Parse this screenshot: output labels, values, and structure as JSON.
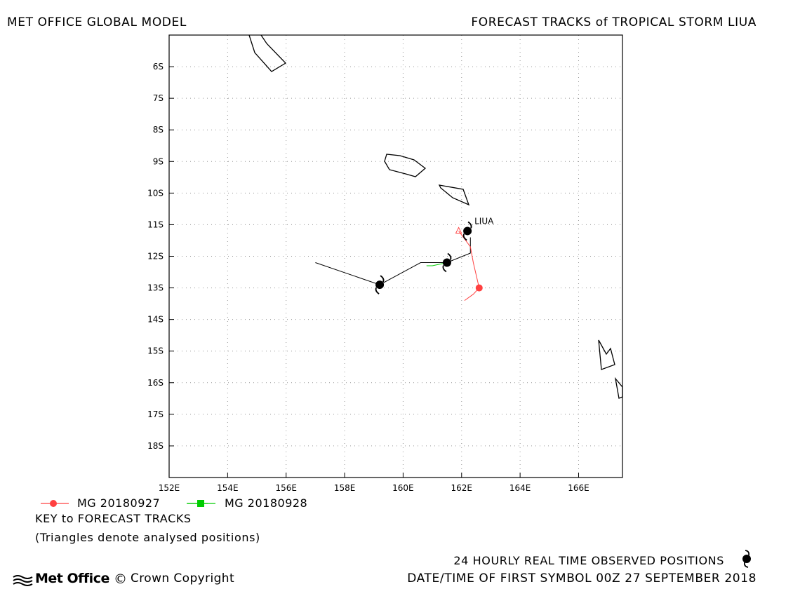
{
  "header": {
    "left_title": "MET OFFICE GLOBAL MODEL",
    "right_title": "FORECAST TRACKS of TROPICAL STORM LIUA"
  },
  "map": {
    "lon_range": [
      152,
      167.5
    ],
    "lat_range": [
      -5,
      -19
    ],
    "lat_labels": [
      "6S",
      "7S",
      "8S",
      "9S",
      "10S",
      "11S",
      "12S",
      "13S",
      "14S",
      "15S",
      "16S",
      "17S",
      "18S"
    ],
    "lon_labels": [
      "152E",
      "154E",
      "156E",
      "158E",
      "160E",
      "162E",
      "164E",
      "166E"
    ],
    "grid": true,
    "storm_name": "LIUA",
    "colors": {
      "observed": "#000000",
      "run1": "#ff4040",
      "run2": "#00cc00",
      "land": "#000000"
    }
  },
  "chart_data": {
    "type": "map-tracks",
    "observed_track": [
      {
        "lon": 162.2,
        "lat": -11.2
      },
      {
        "lon": 161.5,
        "lat": -12.2
      },
      {
        "lon": 159.2,
        "lat": -12.9
      }
    ],
    "observed_line": [
      {
        "lon": 162.3,
        "lat": -11.4
      },
      {
        "lon": 162.3,
        "lat": -11.9
      },
      {
        "lon": 161.5,
        "lat": -12.2
      },
      {
        "lon": 160.6,
        "lat": -12.2
      },
      {
        "lon": 159.2,
        "lat": -12.9
      },
      {
        "lon": 157.0,
        "lat": -12.2
      }
    ],
    "series": [
      {
        "name": "MG 20180927",
        "color": "#ff4040",
        "points": [
          {
            "lon": 161.9,
            "lat": -11.2
          },
          {
            "lon": 162.3,
            "lat": -11.7
          },
          {
            "lon": 162.4,
            "lat": -12.2
          },
          {
            "lon": 162.5,
            "lat": -12.6
          },
          {
            "lon": 162.6,
            "lat": -13.0
          },
          {
            "lon": 162.4,
            "lat": -13.2
          },
          {
            "lon": 162.1,
            "lat": -13.4
          }
        ],
        "dot": {
          "lon": 162.6,
          "lat": -13.0
        },
        "analysed": {
          "lon": 161.9,
          "lat": -11.2
        }
      },
      {
        "name": "MG 20180928",
        "color": "#00cc00",
        "points": [
          {
            "lon": 161.5,
            "lat": -12.2
          },
          {
            "lon": 161.0,
            "lat": -12.3
          },
          {
            "lon": 160.8,
            "lat": -12.3
          }
        ],
        "analysed": {
          "lon": 161.5,
          "lat": -12.2
        }
      }
    ]
  },
  "legend": {
    "entries": [
      {
        "label": "MG 20180927",
        "color": "#ff4040"
      },
      {
        "label": "MG 20180928",
        "color": "#00cc00"
      }
    ],
    "key_title": "KEY to FORECAST TRACKS",
    "key_note": "(Triangles denote analysed positions)"
  },
  "footer": {
    "logo_text": "Met Office",
    "copyright": "Crown Copyright",
    "observed_text": "24 HOURLY REAL TIME OBSERVED POSITIONS",
    "datetime_text": "DATE/TIME OF FIRST SYMBOL 00Z 27 SEPTEMBER 2018"
  }
}
